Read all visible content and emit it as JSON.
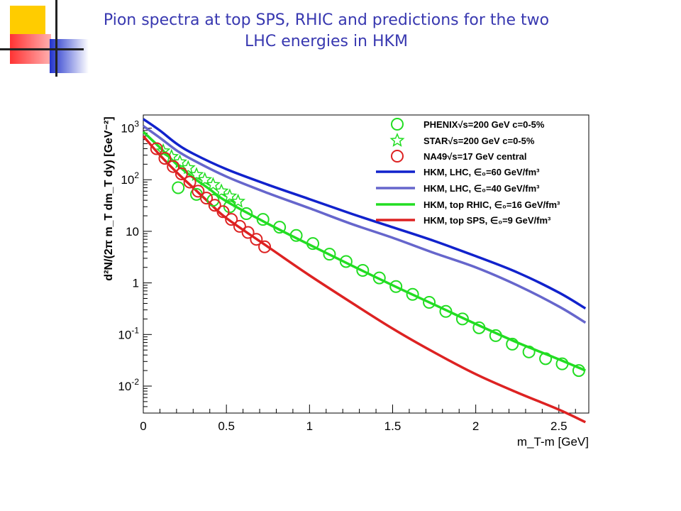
{
  "slide": {
    "title_line1": "Pion spectra at top SPS, RHIC and predictions for the two",
    "title_line2": "LHC energies in HKM",
    "accent_colors": [
      "#ffcc00",
      "#ff3333",
      "#2233cc"
    ]
  },
  "chart_data": {
    "type": "scatter",
    "xlabel": "m_T-m [GeV]",
    "ylabel": "d²N/(2π m_T dm_T dy) [GeV⁻²]",
    "xlim": [
      0,
      2.68
    ],
    "ylim": [
      0.003,
      1800
    ],
    "yscale": "log",
    "grid": false,
    "legend_position": "top-right",
    "x_ticks": [
      {
        "v": 0,
        "label": "0"
      },
      {
        "v": 0.5,
        "label": "0.5"
      },
      {
        "v": 1,
        "label": "1"
      },
      {
        "v": 1.5,
        "label": "1.5"
      },
      {
        "v": 2,
        "label": "2"
      },
      {
        "v": 2.5,
        "label": "2.5"
      }
    ],
    "y_ticks": [
      {
        "v": 0.01,
        "base": "10",
        "exp": "-2"
      },
      {
        "v": 0.1,
        "base": "10",
        "exp": "-1"
      },
      {
        "v": 1,
        "base": "1",
        "exp": ""
      },
      {
        "v": 10,
        "base": "10",
        "exp": ""
      },
      {
        "v": 100,
        "base": "10",
        "exp": "2"
      },
      {
        "v": 1000,
        "base": "10",
        "exp": "3"
      }
    ],
    "series": [
      {
        "name": "PHENIX√s=200 GeV c=0-5%",
        "kind": "points",
        "marker": "circle",
        "color": "#22dd22",
        "x": [
          0.21,
          0.32,
          0.42,
          0.52,
          0.62,
          0.72,
          0.82,
          0.92,
          1.02,
          1.12,
          1.22,
          1.32,
          1.42,
          1.52,
          1.62,
          1.72,
          1.82,
          1.92,
          2.02,
          2.12,
          2.22,
          2.32,
          2.42,
          2.52,
          2.62
        ],
        "y": [
          70,
          52,
          40,
          30,
          22,
          17,
          12,
          8.3,
          5.8,
          3.6,
          2.6,
          1.75,
          1.25,
          0.85,
          0.6,
          0.42,
          0.28,
          0.2,
          0.135,
          0.095,
          0.065,
          0.046,
          0.034,
          0.027,
          0.02
        ]
      },
      {
        "name": "STAR√s=200 GeV c=0-5%",
        "kind": "points",
        "marker": "star",
        "color": "#22dd22",
        "x": [
          0.12,
          0.17,
          0.22,
          0.27,
          0.32,
          0.37,
          0.42,
          0.47,
          0.52,
          0.57
        ],
        "y": [
          360,
          280,
          220,
          170,
          125,
          100,
          80,
          60,
          48,
          38
        ]
      },
      {
        "name": "NA49√s=17 GeV central",
        "kind": "points",
        "marker": "circle",
        "color": "#dd2222",
        "x": [
          0.08,
          0.13,
          0.18,
          0.23,
          0.28,
          0.33,
          0.38,
          0.43,
          0.48,
          0.53,
          0.58,
          0.63,
          0.68,
          0.73
        ],
        "y": [
          400,
          260,
          180,
          130,
          90,
          60,
          44,
          32,
          24,
          17,
          12.5,
          9.5,
          7,
          5
        ]
      },
      {
        "name": "HKM, LHC, ∈₀=60 GeV/fm³",
        "kind": "line",
        "color": "#1122cc",
        "x": [
          0,
          0.1,
          0.2,
          0.3,
          0.5,
          0.75,
          1,
          1.25,
          1.5,
          1.75,
          2,
          2.25,
          2.5,
          2.66
        ],
        "y": [
          1500,
          900,
          500,
          320,
          160,
          80,
          42,
          22,
          12,
          6.5,
          3.3,
          1.6,
          0.65,
          0.32
        ]
      },
      {
        "name": "HKM, LHC, ∈₀=40 GeV/fm³",
        "kind": "line",
        "color": "#6666cc",
        "x": [
          0,
          0.1,
          0.2,
          0.3,
          0.5,
          0.75,
          1,
          1.25,
          1.5,
          1.75,
          2,
          2.25,
          2.5,
          2.66
        ],
        "y": [
          1100,
          650,
          370,
          240,
          115,
          55,
          28,
          14,
          7.5,
          3.8,
          2,
          0.9,
          0.35,
          0.17
        ]
      },
      {
        "name": "HKM, top RHIC, ∈₀=16 GeV/fm³",
        "kind": "line",
        "color": "#22dd22",
        "x": [
          0,
          0.1,
          0.2,
          0.3,
          0.4,
          0.5,
          0.75,
          1,
          1.25,
          1.5,
          1.75,
          2,
          2.25,
          2.5,
          2.66
        ],
        "y": [
          850,
          420,
          200,
          110,
          65,
          38,
          14,
          5.5,
          2.2,
          0.9,
          0.38,
          0.16,
          0.07,
          0.033,
          0.02
        ]
      },
      {
        "name": "HKM, top SPS, ∈₀=9 GeV/fm³",
        "kind": "line",
        "color": "#dd2222",
        "x": [
          0,
          0.1,
          0.2,
          0.3,
          0.4,
          0.5,
          0.75,
          1,
          1.25,
          1.5,
          1.75,
          2,
          2.25,
          2.5,
          2.66
        ],
        "y": [
          700,
          300,
          140,
          70,
          35,
          18,
          5,
          1.4,
          0.42,
          0.13,
          0.045,
          0.017,
          0.0075,
          0.0035,
          0.002
        ]
      }
    ]
  }
}
